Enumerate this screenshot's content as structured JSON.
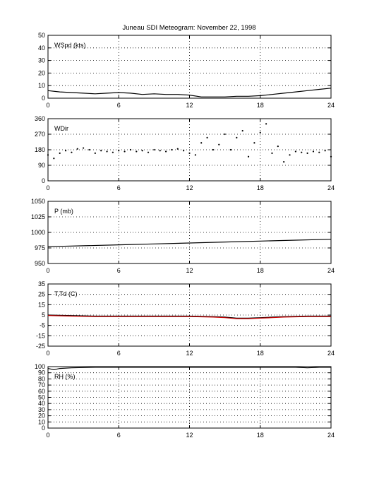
{
  "figure_title": "Juneau SDI Meteogram:   November 22, 1998",
  "colors": {
    "axis": "#000000",
    "grid": "#000000",
    "trace": "#000000",
    "dewpoint_trace": "#cc0000",
    "background": "#ffffff"
  },
  "chart_data": [
    {
      "type": "line",
      "panel_label": "WSpd (kts)",
      "xlim": [
        0,
        24
      ],
      "ylim": [
        0,
        50
      ],
      "xticks": [
        "0",
        "6",
        "12",
        "18",
        "24"
      ],
      "yticks": [
        "0",
        "10",
        "20",
        "30",
        "40",
        "50"
      ],
      "grid": true,
      "series": [
        {
          "color": "#000000",
          "x": [
            0,
            1,
            2,
            3,
            4,
            5,
            6,
            7,
            8,
            9,
            10,
            11,
            12,
            13,
            14,
            15,
            16,
            17,
            18,
            19,
            20,
            21,
            22,
            23,
            24
          ],
          "y": [
            6,
            5,
            4.5,
            4,
            3.5,
            4,
            4.5,
            4,
            3,
            3.5,
            3,
            3,
            2.5,
            1,
            1,
            1,
            1.5,
            1.5,
            2,
            3,
            4,
            5,
            6,
            7,
            8
          ]
        }
      ]
    },
    {
      "type": "scatter",
      "panel_label": "WDir",
      "xlim": [
        0,
        24
      ],
      "ylim": [
        0,
        360
      ],
      "xticks": [
        "0",
        "6",
        "12",
        "18",
        "24"
      ],
      "yticks": [
        "0",
        "90",
        "180",
        "270",
        "360"
      ],
      "grid": true,
      "series": [
        {
          "color": "#000000",
          "x": [
            0,
            0.5,
            1,
            1.5,
            2,
            2.5,
            3,
            3.5,
            4,
            4.5,
            5,
            5.5,
            6,
            6.5,
            7,
            7.5,
            8,
            8.5,
            9,
            9.5,
            10,
            10.5,
            11,
            11.5,
            12,
            12.5,
            13,
            13.5,
            14,
            14.5,
            15,
            15.5,
            16,
            16.5,
            17,
            17.5,
            18,
            18.5,
            19,
            19.5,
            20,
            20.5,
            21,
            21.5,
            22,
            22.5,
            23,
            23.5,
            24
          ],
          "y": [
            150,
            130,
            160,
            175,
            165,
            185,
            190,
            180,
            160,
            175,
            170,
            165,
            175,
            170,
            180,
            170,
            175,
            165,
            180,
            175,
            170,
            180,
            185,
            175,
            160,
            150,
            220,
            250,
            180,
            210,
            270,
            180,
            250,
            290,
            140,
            220,
            280,
            330,
            160,
            200,
            110,
            150,
            170,
            165,
            160,
            170,
            165,
            175,
            140
          ]
        }
      ]
    },
    {
      "type": "line",
      "panel_label": "P (mb)",
      "xlim": [
        0,
        24
      ],
      "ylim": [
        950,
        1050
      ],
      "xticks": [
        "0",
        "6",
        "12",
        "18",
        "24"
      ],
      "yticks": [
        "950",
        "975",
        "1000",
        "1025",
        "1050"
      ],
      "grid": true,
      "series": [
        {
          "color": "#000000",
          "x": [
            0,
            3,
            6,
            9,
            12,
            15,
            18,
            21,
            24
          ],
          "y": [
            977,
            978.5,
            980,
            981.5,
            983,
            984.5,
            986,
            987.5,
            989
          ]
        }
      ]
    },
    {
      "type": "line",
      "panel_label": "T,Td (C)",
      "xlim": [
        0,
        24
      ],
      "ylim": [
        -25,
        35
      ],
      "xticks": [
        "0",
        "6",
        "12",
        "18",
        "24"
      ],
      "yticks": [
        "-25",
        "-15",
        "-5",
        "5",
        "15",
        "25",
        "35"
      ],
      "grid": true,
      "series": [
        {
          "color": "#000000",
          "x": [
            0,
            2,
            4,
            6,
            8,
            10,
            12,
            14,
            15,
            16,
            17,
            18,
            19,
            20,
            22,
            24
          ],
          "y": [
            5,
            4.5,
            4,
            4,
            4,
            4,
            4,
            3.5,
            3,
            2,
            2,
            2.5,
            3,
            3.5,
            4,
            4
          ]
        },
        {
          "color": "#cc0000",
          "x": [
            0,
            2,
            4,
            6,
            8,
            10,
            12,
            14,
            15,
            16,
            17,
            18,
            19,
            20,
            22,
            24
          ],
          "y": [
            4.5,
            4,
            3.5,
            3.5,
            3.5,
            3.5,
            3.5,
            3,
            2.5,
            1.5,
            1.5,
            2,
            2.5,
            3,
            3.5,
            3.5
          ]
        }
      ]
    },
    {
      "type": "line",
      "panel_label": "RH (%)",
      "xlim": [
        0,
        24
      ],
      "ylim": [
        0,
        100
      ],
      "xticks": [
        "0",
        "6",
        "12",
        "18",
        "24"
      ],
      "yticks": [
        "0",
        "10",
        "20",
        "30",
        "40",
        "50",
        "60",
        "70",
        "80",
        "90",
        "100"
      ],
      "grid": true,
      "series": [
        {
          "color": "#000000",
          "x": [
            0,
            0.5,
            1,
            2,
            4,
            6,
            8,
            10,
            12,
            14,
            16,
            18,
            20,
            21,
            22,
            23,
            24
          ],
          "y": [
            97,
            95,
            97,
            98,
            99,
            99,
            99,
            99,
            99,
            99,
            99,
            99,
            99,
            99,
            98,
            99,
            99
          ]
        }
      ]
    }
  ]
}
